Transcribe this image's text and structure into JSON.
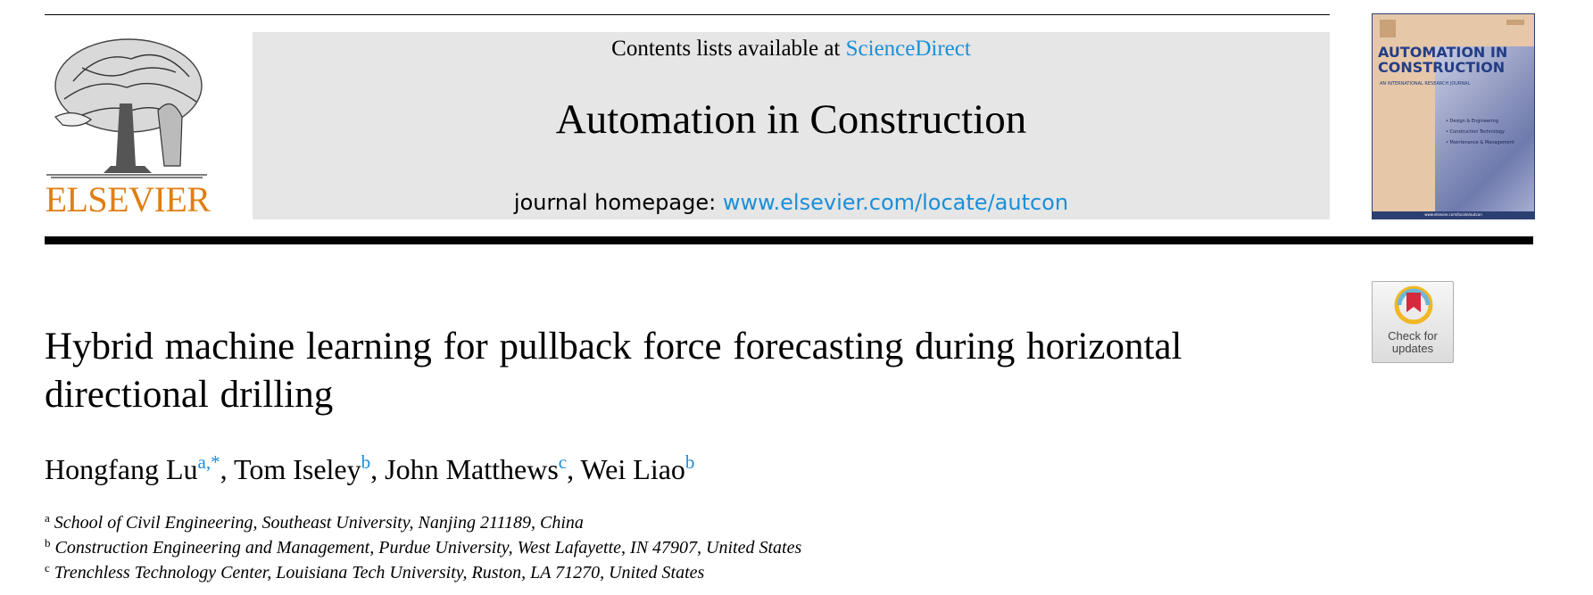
{
  "publisher": {
    "name": "ELSEVIER",
    "color": "#e07e12"
  },
  "header": {
    "contents_prefix": "Contents lists available at ",
    "contents_link": "ScienceDirect",
    "journal_title": "Automation in Construction",
    "homepage_prefix": "journal homepage: ",
    "homepage_link": "www.elsevier.com/locate/autcon",
    "link_color": "#1a8fd8"
  },
  "cover": {
    "title_line1": "AUTOMATION IN",
    "title_line2": "CONSTRUCTION",
    "subtitle": "AN INTERNATIONAL RESEARCH JOURNAL",
    "bullets": [
      "• Design & Engineering",
      "• Construction Technology",
      "• Maintenance & Management"
    ],
    "footer": "www.elsevier.com/locate/autcon"
  },
  "check_updates": {
    "line1": "Check for",
    "line2": "updates",
    "icon": "check-for-updates-icon"
  },
  "article": {
    "title": "Hybrid machine learning for pullback force forecasting during horizontal directional drilling",
    "authors": [
      {
        "name": "Hongfang Lu",
        "sup": "a,*"
      },
      {
        "name": "Tom Iseley",
        "sup": "b"
      },
      {
        "name": "John Matthews",
        "sup": "c"
      },
      {
        "name": "Wei Liao",
        "sup": "b"
      }
    ],
    "author_separator": ", ",
    "affiliations": [
      {
        "label": "a",
        "text": "School of Civil Engineering, Southeast University, Nanjing 211189, China"
      },
      {
        "label": "b",
        "text": "Construction Engineering and Management, Purdue University, West Lafayette, IN 47907, United States"
      },
      {
        "label": "c",
        "text": "Trenchless Technology Center, Louisiana Tech University, Ruston, LA 71270, United States"
      }
    ]
  }
}
